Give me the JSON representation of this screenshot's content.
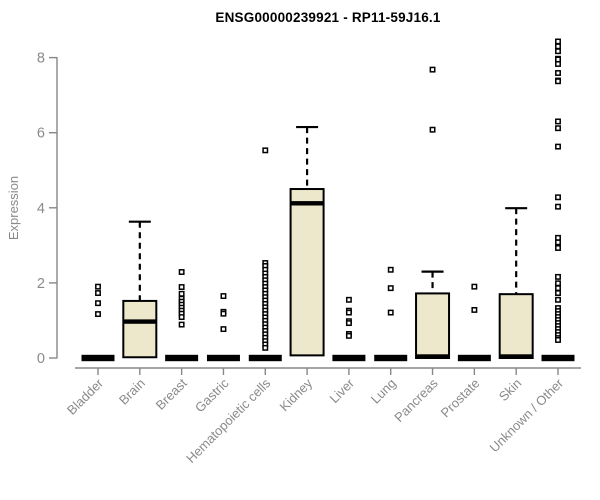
{
  "chart_data": {
    "type": "boxplot",
    "title": "ENSG00000239921 - RP11-59J16.1",
    "ylabel": "Expression",
    "xlabel": "",
    "ylim": [
      0,
      8.5
    ],
    "yticks": [
      0,
      2,
      4,
      6,
      8
    ],
    "grid": false,
    "legend": "none",
    "categories": [
      "Bladder",
      "Brain",
      "Breast",
      "Gastric",
      "Hematopoietic cells",
      "Kidney",
      "Liver",
      "Lung",
      "Pancreas",
      "Prostate",
      "Skin",
      "Unknown / Other"
    ],
    "boxes": [
      {
        "label": "Bladder",
        "q1": 0,
        "median": 0,
        "q3": 0,
        "whisker_low": 0,
        "whisker_high": 0,
        "outliers": [
          1.9,
          1.73,
          1.46,
          1.17
        ]
      },
      {
        "label": "Brain",
        "q1": 0.02,
        "median": 0.97,
        "q3": 1.52,
        "whisker_low": 0,
        "whisker_high": 3.63,
        "outliers": []
      },
      {
        "label": "Breast",
        "q1": 0,
        "median": 0,
        "q3": 0,
        "whisker_low": 0,
        "whisker_high": 0,
        "outliers": [
          2.29,
          1.89,
          1.71,
          1.58,
          1.5,
          1.42,
          1.34,
          1.26,
          1.18,
          1.09,
          0.89
        ]
      },
      {
        "label": "Gastric",
        "q1": 0,
        "median": 0,
        "q3": 0,
        "whisker_low": 0,
        "whisker_high": 0,
        "outliers": [
          1.65,
          1.23,
          1.18,
          0.77
        ]
      },
      {
        "label": "Hematopoietic cells",
        "q1": 0,
        "median": 0,
        "q3": 0,
        "whisker_low": 0,
        "whisker_high": 0,
        "outliers": [
          5.53,
          2.53,
          2.45,
          2.35,
          2.25,
          2.16,
          2.07,
          1.98,
          1.89,
          1.8,
          1.71,
          1.62,
          1.53,
          1.44,
          1.35,
          1.26,
          1.17,
          1.08,
          0.99,
          0.9,
          0.81,
          0.72,
          0.63,
          0.54,
          0.45,
          0.36,
          0.27
        ]
      },
      {
        "label": "Kidney",
        "q1": 0.07,
        "median": 4.12,
        "q3": 4.5,
        "whisker_low": 0,
        "whisker_high": 6.15,
        "outliers": []
      },
      {
        "label": "Liver",
        "q1": 0,
        "median": 0,
        "q3": 0,
        "whisker_low": 0,
        "whisker_high": 0,
        "outliers": [
          1.55,
          1.26,
          1.21,
          0.98,
          0.93,
          0.64,
          0.59
        ]
      },
      {
        "label": "Lung",
        "q1": 0,
        "median": 0,
        "q3": 0,
        "whisker_low": 0,
        "whisker_high": 0,
        "outliers": [
          2.35,
          1.86,
          1.21
        ]
      },
      {
        "label": "Pancreas",
        "q1": 0,
        "median": 0.04,
        "q3": 1.72,
        "whisker_low": 0,
        "whisker_high": 2.3,
        "outliers": [
          7.68,
          6.08
        ]
      },
      {
        "label": "Prostate",
        "q1": 0,
        "median": 0,
        "q3": 0,
        "whisker_low": 0,
        "whisker_high": 0,
        "outliers": [
          1.9,
          1.28
        ]
      },
      {
        "label": "Skin",
        "q1": 0,
        "median": 0.04,
        "q3": 1.7,
        "whisker_low": 0,
        "whisker_high": 3.99,
        "outliers": []
      },
      {
        "label": "Unknown / Other",
        "q1": 0,
        "median": 0,
        "q3": 0,
        "whisker_low": 0,
        "whisker_high": 0,
        "outliers": [
          8.43,
          8.3,
          8.17,
          7.97,
          7.95,
          7.83,
          7.59,
          7.39,
          7.37,
          6.3,
          6.12,
          5.63,
          4.28,
          4.03,
          3.2,
          3.08,
          2.93,
          2.16,
          1.99,
          1.86,
          1.73,
          1.55,
          1.33,
          1.25,
          1.17,
          1.09,
          1.01,
          0.93,
          0.85,
          0.77,
          0.69,
          0.61,
          0.53,
          0.48
        ]
      }
    ],
    "colors": {
      "box_fill": "#EDE8CC",
      "box_border": "#000000",
      "median": "#000000",
      "outlier_stroke": "#000000",
      "outlier_fill": "#ffffff",
      "axis": "#878787",
      "tick_label": "#8a8a8a",
      "title": "#000000"
    }
  }
}
